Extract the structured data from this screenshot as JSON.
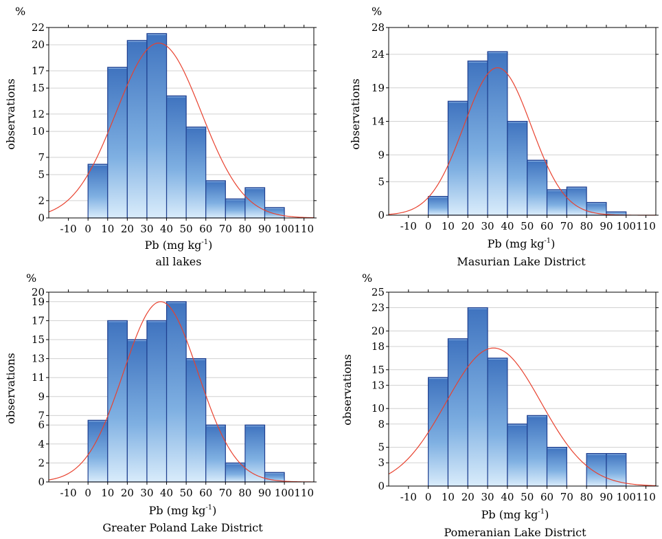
{
  "chart_data": [
    {
      "type": "bar",
      "caption": "all lakes",
      "unit_label": "%",
      "ylabel": "observations",
      "xlabel_main": "Pb (mg kg",
      "xlabel_sup": "-1",
      "xlabel_close": ")",
      "xlim": [
        -20,
        115
      ],
      "ylim": [
        0,
        22
      ],
      "y_ticks": [
        0,
        2,
        5,
        7,
        10,
        12,
        15,
        17,
        20,
        22
      ],
      "x_ticks": [
        -10,
        0,
        10,
        20,
        30,
        40,
        50,
        60,
        70,
        80,
        90,
        100,
        110
      ],
      "bins": [
        [
          0,
          10
        ],
        [
          10,
          20
        ],
        [
          20,
          30
        ],
        [
          30,
          40
        ],
        [
          40,
          50
        ],
        [
          50,
          60
        ],
        [
          60,
          70
        ],
        [
          70,
          80
        ],
        [
          80,
          90
        ],
        [
          90,
          100
        ]
      ],
      "values": [
        6.2,
        17.4,
        20.5,
        21.3,
        14.1,
        10.5,
        4.3,
        2.2,
        3.5,
        1.2
      ],
      "normal_fit": {
        "mean": 36,
        "sd": 21.6,
        "peak": 20.2
      }
    },
    {
      "type": "bar",
      "caption": "Masurian Lake District",
      "unit_label": "%",
      "ylabel": "observations",
      "xlabel_main": "Pb (mg kg",
      "xlabel_sup": "-1",
      "xlabel_close": ")",
      "xlim": [
        -20,
        115
      ],
      "ylim": [
        0,
        28
      ],
      "y_ticks": [
        0,
        5,
        9,
        14,
        19,
        24,
        28
      ],
      "x_ticks": [
        -10,
        0,
        10,
        20,
        30,
        40,
        50,
        60,
        70,
        80,
        90,
        100,
        110
      ],
      "bins": [
        [
          0,
          10
        ],
        [
          10,
          20
        ],
        [
          20,
          30
        ],
        [
          30,
          40
        ],
        [
          40,
          50
        ],
        [
          50,
          60
        ],
        [
          60,
          70
        ],
        [
          70,
          80
        ],
        [
          80,
          90
        ],
        [
          90,
          100
        ]
      ],
      "values": [
        2.8,
        17.0,
        23.0,
        24.4,
        14.0,
        8.2,
        3.8,
        4.2,
        1.9,
        0.5
      ],
      "normal_fit": {
        "mean": 35,
        "sd": 17,
        "peak": 22
      }
    },
    {
      "type": "bar",
      "caption": "Greater Poland Lake District",
      "unit_label": "%",
      "ylabel": "observations",
      "xlabel_main": "Pb (mg kg",
      "xlabel_sup": "-1",
      "xlabel_close": ")",
      "xlim": [
        -20,
        115
      ],
      "ylim": [
        0,
        20
      ],
      "y_ticks": [
        0,
        2,
        4,
        6,
        7,
        9,
        11,
        13,
        15,
        17,
        19,
        20
      ],
      "x_ticks": [
        -10,
        0,
        10,
        20,
        30,
        40,
        50,
        60,
        70,
        80,
        90,
        100,
        110
      ],
      "bins": [
        [
          0,
          10
        ],
        [
          10,
          20
        ],
        [
          20,
          30
        ],
        [
          30,
          40
        ],
        [
          40,
          50
        ],
        [
          50,
          60
        ],
        [
          60,
          70
        ],
        [
          70,
          80
        ],
        [
          80,
          90
        ],
        [
          90,
          100
        ]
      ],
      "values": [
        6.5,
        17,
        15,
        17,
        19,
        13,
        6,
        2,
        6,
        1
      ],
      "normal_fit": {
        "mean": 37,
        "sd": 19,
        "peak": 19
      }
    },
    {
      "type": "bar",
      "caption": "Pomeranian Lake District",
      "unit_label": "%",
      "ylabel": "observations",
      "xlabel_main": "Pb (mg kg",
      "xlabel_sup": "-1",
      "xlabel_close": ")",
      "xlim": [
        -20,
        115
      ],
      "ylim": [
        0,
        25
      ],
      "y_ticks": [
        0,
        3,
        5,
        8,
        10,
        13,
        15,
        18,
        20,
        23,
        25
      ],
      "x_ticks": [
        -10,
        0,
        10,
        20,
        30,
        40,
        50,
        60,
        70,
        80,
        90,
        100,
        110
      ],
      "bins": [
        [
          0,
          10
        ],
        [
          10,
          20
        ],
        [
          20,
          30
        ],
        [
          30,
          40
        ],
        [
          40,
          50
        ],
        [
          50,
          60
        ],
        [
          60,
          70
        ],
        [
          70,
          80
        ],
        [
          80,
          90
        ],
        [
          90,
          100
        ]
      ],
      "values": [
        14,
        19,
        23,
        16.5,
        8,
        9.1,
        5,
        0,
        4.2,
        4.2
      ],
      "normal_fit": {
        "mean": 33,
        "sd": 24,
        "peak": 17.8
      }
    }
  ]
}
